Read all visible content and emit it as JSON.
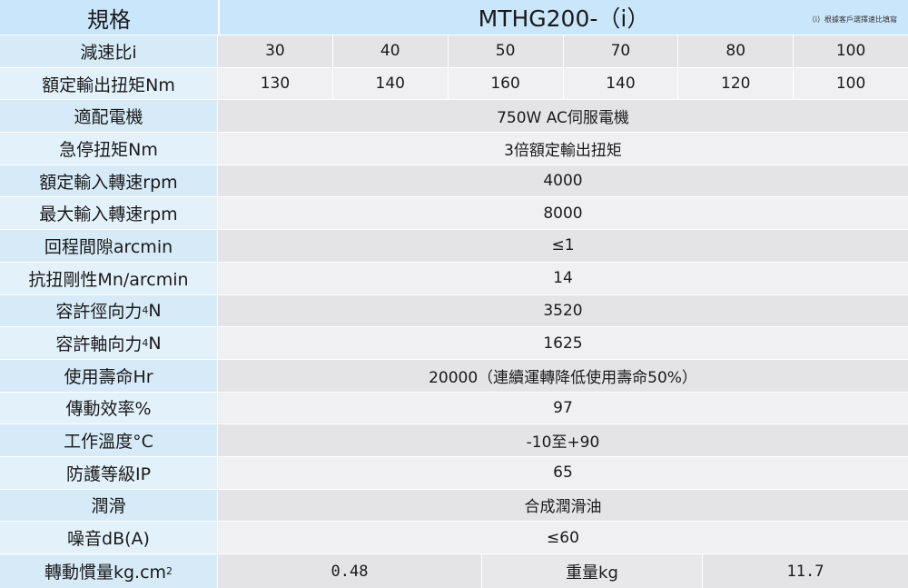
{
  "header": {
    "label": "規格",
    "model": "MTHG200-（i）",
    "note": "（i）根據客戶選擇速比填寫"
  },
  "ratio_row": {
    "label": "減速比i",
    "values": [
      "30",
      "40",
      "50",
      "70",
      "80",
      "100"
    ]
  },
  "torque_row": {
    "label": "額定輸出扭矩Nm",
    "values": [
      "130",
      "140",
      "160",
      "140",
      "120",
      "100"
    ]
  },
  "rows": [
    {
      "label": "適配電機",
      "value": "750W AC伺服電機"
    },
    {
      "label": "急停扭矩Nm",
      "value": "3倍額定輸出扭矩"
    },
    {
      "label": "額定輸入轉速rpm",
      "value": "4000"
    },
    {
      "label": "最大輸入轉速rpm",
      "value": "8000"
    },
    {
      "label": "回程間隙arcmin",
      "value": "≤1"
    },
    {
      "label": "抗扭剛性Mn/arcmin",
      "value": "14"
    },
    {
      "label": "容許徑向力",
      "sup": "4",
      "unit": " N",
      "value": "3520"
    },
    {
      "label": "容許軸向力",
      "sup": "4",
      "unit": " N",
      "value": "1625"
    },
    {
      "label": "使用壽命Hr",
      "value": "20000（連續運轉降低使用壽命50%）"
    },
    {
      "label": "傳動效率%",
      "value": "97"
    },
    {
      "label": "工作溫度°C",
      "value": "-10至+90"
    },
    {
      "label": "防護等級IP",
      "value": "65"
    },
    {
      "label": "潤滑",
      "value": "合成潤滑油"
    },
    {
      "label": "噪音dB(A)",
      "value": "≤60"
    }
  ],
  "last_row": {
    "label": "轉動慣量kg.cm",
    "label_sup": "2",
    "inertia_value": "0.48",
    "weight_label": "重量kg",
    "weight_value": "11.7"
  }
}
